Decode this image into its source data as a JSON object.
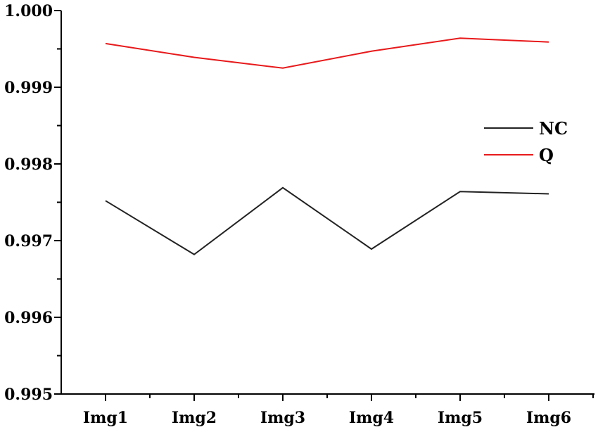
{
  "chart_data": {
    "type": "line",
    "categories": [
      "Img1",
      "Img2",
      "Img3",
      "Img4",
      "Img5",
      "Img6"
    ],
    "series": [
      {
        "name": "NC",
        "color": "#222222",
        "values": [
          0.99752,
          0.99682,
          0.99769,
          0.99689,
          0.99764,
          0.99761
        ]
      },
      {
        "name": "Q",
        "color": "#e8191b",
        "values": [
          0.99957,
          0.99939,
          0.99925,
          0.99947,
          0.99964,
          0.99959
        ]
      }
    ],
    "y_ticks": [
      "1.000",
      "0.999",
      "0.998",
      "0.997",
      "0.996",
      "0.995"
    ],
    "ylim": [
      0.995,
      1.0
    ],
    "title": "",
    "xlabel": "",
    "ylabel": "",
    "grid": false,
    "legend_position": "right-middle"
  }
}
